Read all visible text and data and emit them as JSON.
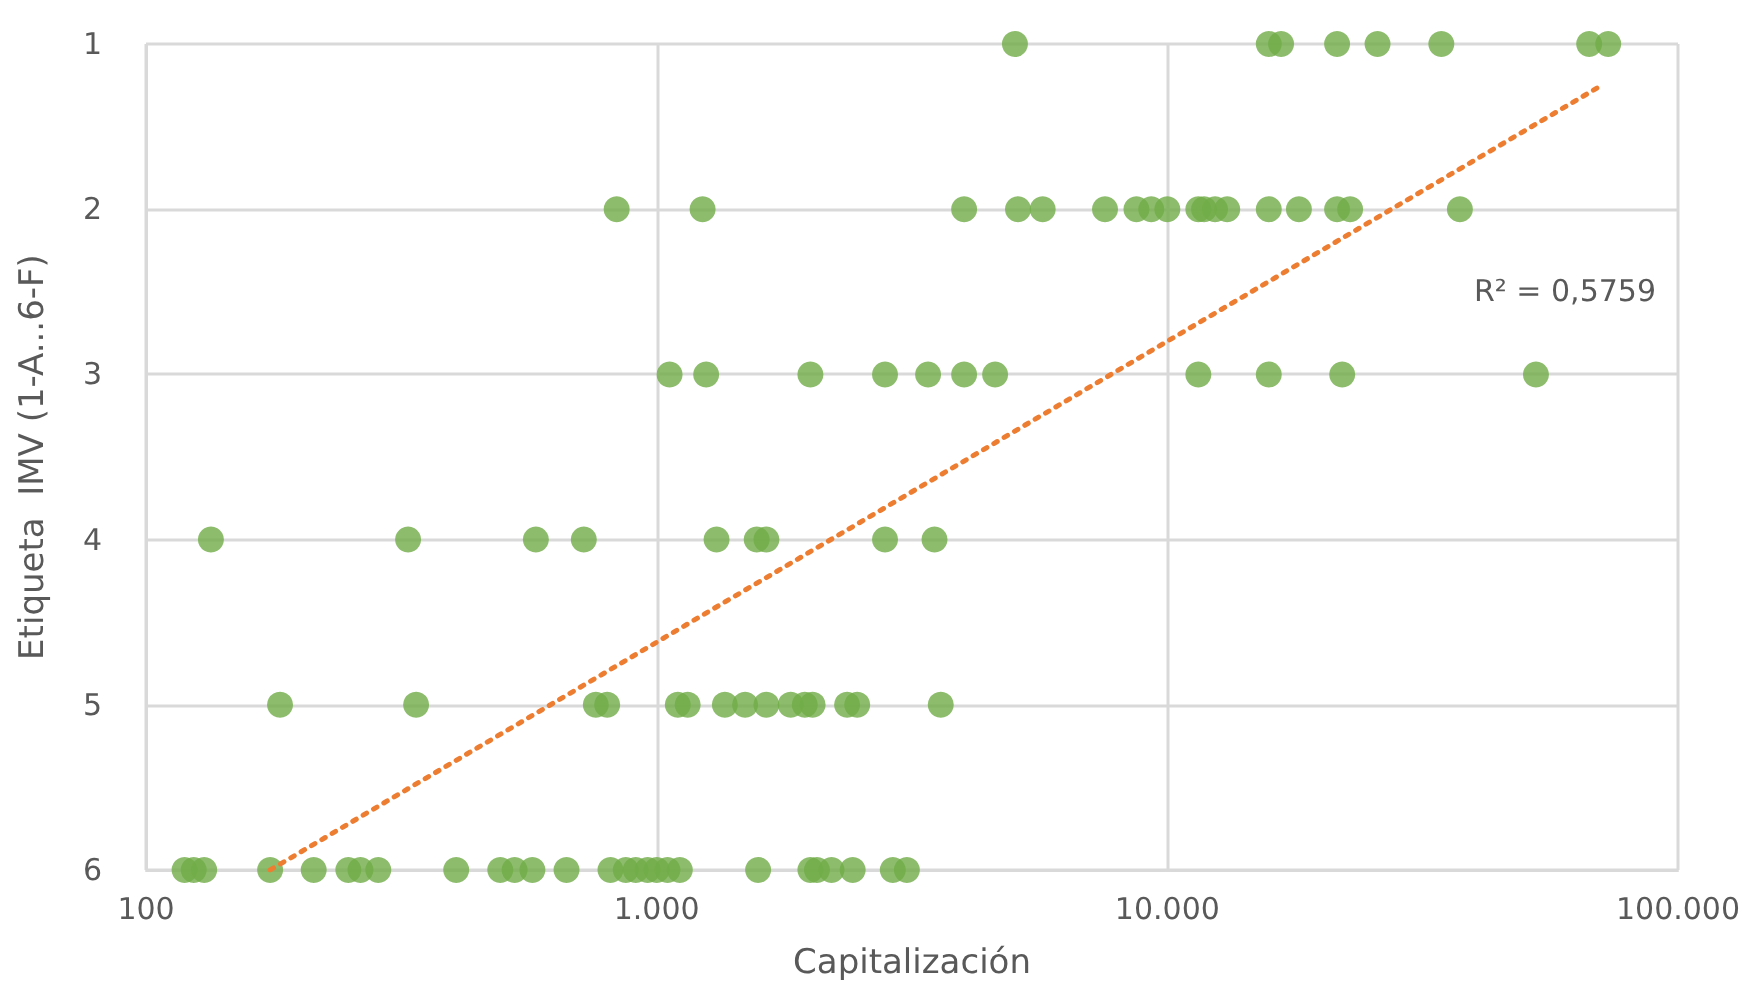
{
  "chart_data": {
    "type": "scatter",
    "xlabel": "Capitalización",
    "ylabel": "Etiqueta  IMV (1-A...6-F)",
    "log": "x",
    "grid": true,
    "marker": "circle",
    "xlim": [
      100,
      100000
    ],
    "xticks": [
      {
        "value": 100,
        "label": "100"
      },
      {
        "value": 1000,
        "label": "1.000"
      },
      {
        "value": 10000,
        "label": "10.000"
      },
      {
        "value": 100000,
        "label": "100.000"
      }
    ],
    "ylim": [
      6,
      1
    ],
    "yticks": [
      1,
      2,
      3,
      4,
      5,
      6
    ],
    "annotations": [
      "R² = 0,5759"
    ],
    "series": [
      {
        "color": "#70ad47",
        "x": [
          5030,
          15800,
          16700,
          21500,
          25800,
          34400,
          67000,
          73000,
          835,
          1230,
          4000,
          5100,
          5700,
          7550,
          8700,
          9300,
          10000,
          11500,
          11800,
          12400,
          13100,
          15800,
          18100,
          21500,
          22800,
          37400,
          1060,
          1250,
          2000,
          2800,
          3400,
          4000,
          4600,
          11500,
          15800,
          22000,
          52700,
          134,
          326,
          580,
          720,
          1310,
          1570,
          1640,
          2800,
          3500,
          183,
          338,
          760,
          800,
          1100,
          1150,
          1360,
          1490,
          1640,
          1830,
          1950,
          2020,
          2360,
          2470,
          3600,
          119,
          124,
          130,
          175,
          213,
          249,
          263,
          285,
          405,
          494,
          527,
          571,
          666,
          812,
          870,
          910,
          960,
          1000,
          1050,
          1110,
          1580,
          2000,
          2060,
          2200,
          2420,
          2900,
          3090
        ],
        "values": [
          1,
          1,
          1,
          1,
          1,
          1,
          1,
          1,
          2,
          2,
          2,
          2,
          2,
          2,
          2,
          2,
          2,
          2,
          2,
          2,
          2,
          2,
          2,
          2,
          2,
          2,
          3,
          3,
          3,
          3,
          3,
          3,
          3,
          3,
          3,
          3,
          3,
          4,
          4,
          4,
          4,
          4,
          4,
          4,
          4,
          4,
          5,
          5,
          5,
          5,
          5,
          5,
          5,
          5,
          5,
          5,
          5,
          5,
          5,
          5,
          5,
          6,
          6,
          6,
          6,
          6,
          6,
          6,
          6,
          6,
          6,
          6,
          6,
          6,
          6,
          6,
          6,
          6,
          6,
          6,
          6,
          6,
          6,
          6,
          6,
          6,
          6,
          6
        ]
      },
      {
        "type": "line",
        "color": "#ed7d31",
        "line_style": "dotted",
        "marker": "none",
        "x": [
          175,
          70000
        ],
        "values": [
          6,
          1.26
        ]
      }
    ]
  }
}
